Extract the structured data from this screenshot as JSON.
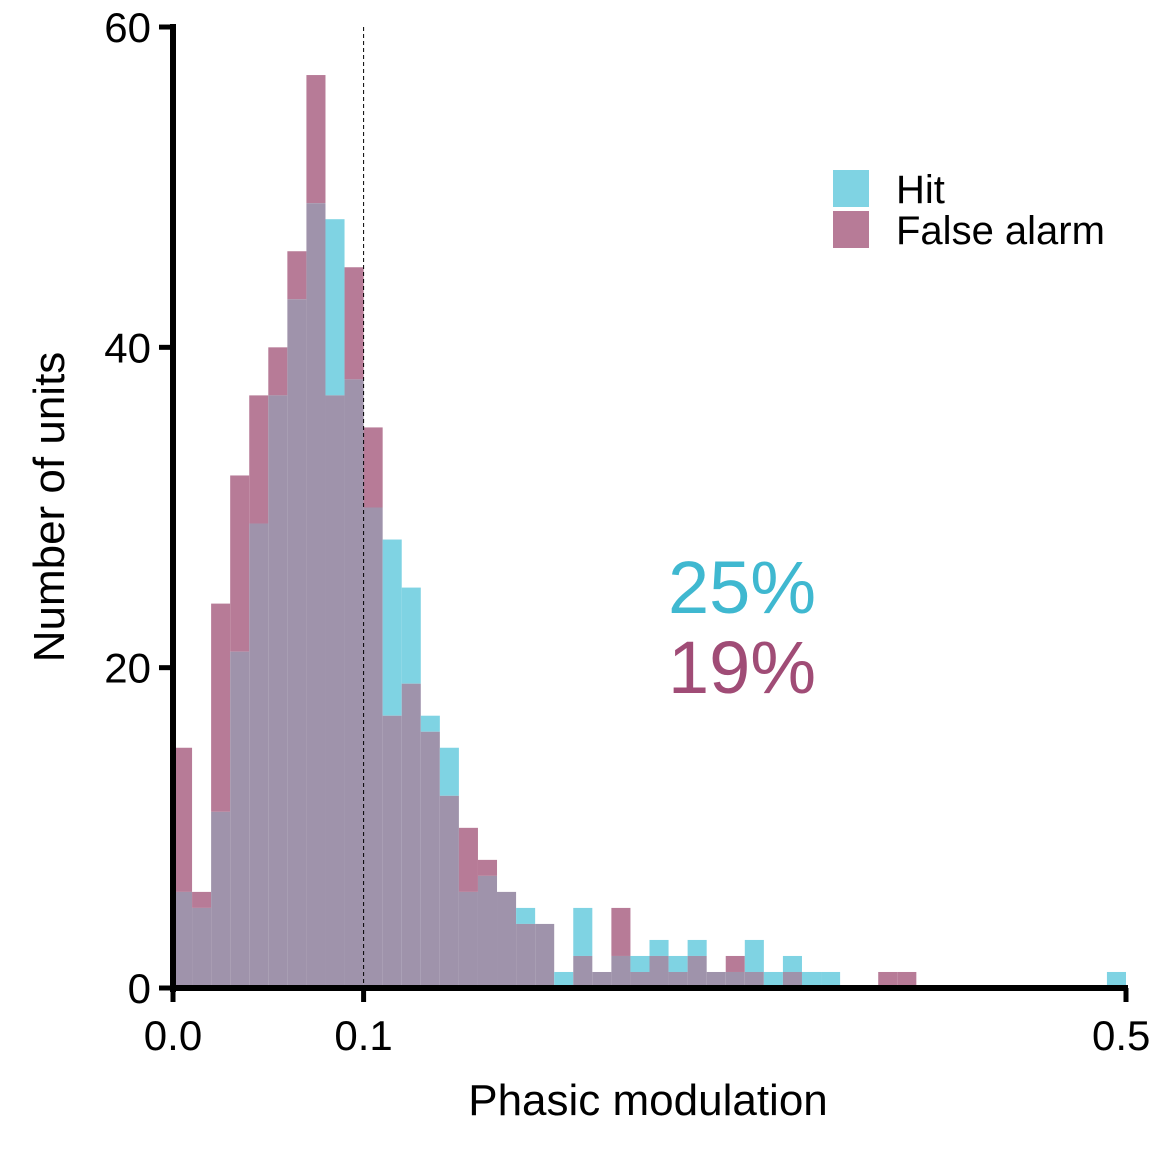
{
  "chart_data": {
    "type": "bar",
    "xlabel": "Phasic modulation",
    "ylabel": "Number of units",
    "xlim": [
      0.0,
      0.5
    ],
    "ylim": [
      0,
      60
    ],
    "x_ticks": [
      {
        "value": 0.0,
        "label": "0.0"
      },
      {
        "value": 0.1,
        "label": "0.1"
      },
      {
        "value": 0.5,
        "label": "0.5"
      }
    ],
    "y_ticks": [
      {
        "value": 0,
        "label": "0"
      },
      {
        "value": 20,
        "label": "20"
      },
      {
        "value": 40,
        "label": "40"
      },
      {
        "value": 60,
        "label": "60"
      }
    ],
    "bin_width": 0.01,
    "threshold_line": 0.1,
    "legend_position": "top-right",
    "series": [
      {
        "name": "Hit",
        "color": "#7fd3e3",
        "bin_starts": [
          0.0,
          0.01,
          0.02,
          0.03,
          0.04,
          0.05,
          0.06,
          0.07,
          0.08,
          0.09,
          0.1,
          0.11,
          0.12,
          0.13,
          0.14,
          0.15,
          0.16,
          0.17,
          0.18,
          0.19,
          0.2,
          0.21,
          0.22,
          0.23,
          0.24,
          0.25,
          0.26,
          0.27,
          0.28,
          0.29,
          0.3,
          0.31,
          0.32,
          0.33,
          0.34,
          0.35,
          0.36,
          0.37,
          0.38,
          0.39,
          0.49
        ],
        "values": [
          6,
          5,
          11,
          21,
          29,
          37,
          43,
          49,
          48,
          38,
          30,
          28,
          25,
          17,
          15,
          6,
          7,
          6,
          5,
          4,
          1,
          5,
          1,
          2,
          2,
          3,
          2,
          3,
          1,
          1,
          3,
          1,
          2,
          1,
          1,
          0,
          0,
          0,
          0,
          0,
          1
        ]
      },
      {
        "name": "False alarm",
        "color": "#b77b97",
        "bin_starts": [
          0.0,
          0.01,
          0.02,
          0.03,
          0.04,
          0.05,
          0.06,
          0.07,
          0.08,
          0.09,
          0.1,
          0.11,
          0.12,
          0.13,
          0.14,
          0.15,
          0.16,
          0.17,
          0.18,
          0.19,
          0.2,
          0.21,
          0.22,
          0.23,
          0.24,
          0.25,
          0.26,
          0.27,
          0.28,
          0.29,
          0.3,
          0.31,
          0.32,
          0.33,
          0.34,
          0.35,
          0.36,
          0.37,
          0.38,
          0.39,
          0.49
        ],
        "values": [
          15,
          6,
          24,
          32,
          37,
          40,
          46,
          57,
          37,
          45,
          35,
          17,
          19,
          16,
          12,
          10,
          8,
          6,
          4,
          4,
          0,
          2,
          1,
          5,
          1,
          2,
          1,
          2,
          1,
          2,
          1,
          0,
          1,
          0,
          0,
          0,
          0,
          1,
          1,
          0,
          0
        ]
      }
    ],
    "overlap_color": "#9f93ab",
    "annotations": [
      {
        "text": "25%",
        "color": "#3fb8d0"
      },
      {
        "text": "19%",
        "color": "#a04c76"
      }
    ]
  }
}
